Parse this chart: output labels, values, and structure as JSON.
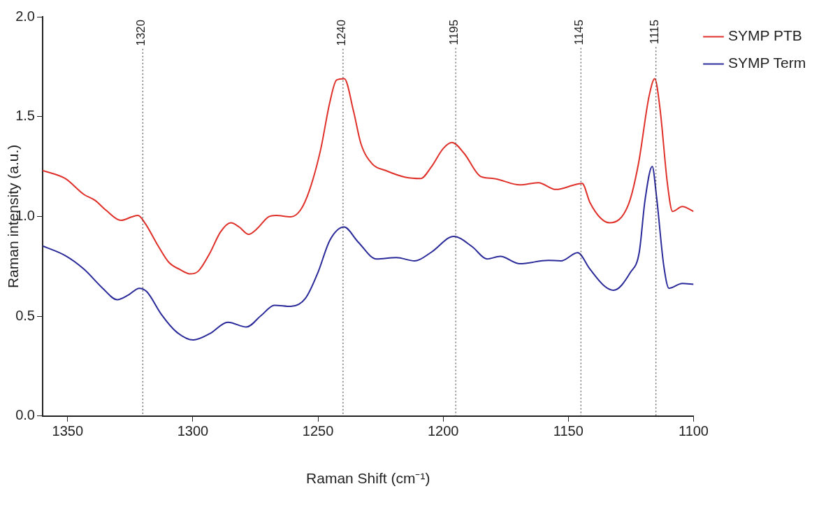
{
  "chart_data": {
    "type": "line",
    "xlabel": "Raman Shift (cm⁻¹)",
    "ylabel": "Raman intensity (a.u.)",
    "xlim": [
      1360,
      1100
    ],
    "xticks": [
      1350,
      1300,
      1250,
      1200,
      1150,
      1100
    ],
    "ylim": [
      0,
      2
    ],
    "yticks": [
      {
        "value": 0,
        "label": "0.0"
      },
      {
        "value": 0.5,
        "label": "0.5"
      },
      {
        "value": 1,
        "label": "1.0"
      },
      {
        "value": 1.5,
        "label": "1.5"
      },
      {
        "value": 2,
        "label": "2.0"
      }
    ],
    "grid": false,
    "legend": "top right",
    "marker": "none",
    "line_style": "solid",
    "ref_lines": [
      {
        "axis": "x",
        "value": 1320,
        "label": "1320",
        "color": "#333333",
        "line_style": "dotted"
      },
      {
        "axis": "x",
        "value": 1240,
        "label": "1240",
        "color": "#333333",
        "line_style": "dotted"
      },
      {
        "axis": "x",
        "value": 1195,
        "label": "1195",
        "color": "#333333",
        "line_style": "dotted"
      },
      {
        "axis": "x",
        "value": 1145,
        "label": "1145",
        "color": "#333333",
        "line_style": "dotted"
      },
      {
        "axis": "x",
        "value": 1115,
        "label": "1115",
        "color": "#333333",
        "line_style": "dotted"
      }
    ],
    "series": [
      {
        "name": "SYMP PTB",
        "color": "#e0302a",
        "x": [
          1360,
          1351,
          1343.5,
          1339,
          1334.6,
          1328.7,
          1324.3,
          1321.9,
          1319,
          1314,
          1309.6,
          1305,
          1301,
          1297.8,
          1293.3,
          1288.9,
          1284.8,
          1281.5,
          1277.7,
          1274.7,
          1269.7,
          1266.8,
          1260.9,
          1257,
          1253.5,
          1249,
          1245.3,
          1242.6,
          1239.5,
          1235.8,
          1232.9,
          1228.4,
          1223,
          1215,
          1209,
          1204.8,
          1200,
          1196.5,
          1191.6,
          1185,
          1179.8,
          1169.4,
          1162,
          1155,
          1147,
          1144.5,
          1141.4,
          1137,
          1133.5,
          1126,
          1122,
          1117.8,
          1115.5,
          1113.4,
          1110.4,
          1108.4,
          1104.5,
          1100
        ],
        "values": [
          1.23,
          1.19,
          1.11,
          1.08,
          1.03,
          0.98,
          0.998,
          1.005,
          0.964,
          0.855,
          0.77,
          0.733,
          0.712,
          0.726,
          0.814,
          0.923,
          0.968,
          0.947,
          0.91,
          0.934,
          0.998,
          1.005,
          0.998,
          1.032,
          1.128,
          1.332,
          1.571,
          1.683,
          1.69,
          1.526,
          1.366,
          1.264,
          1.23,
          1.196,
          1.19,
          1.247,
          1.34,
          1.37,
          1.315,
          1.2,
          1.19,
          1.158,
          1.169,
          1.135,
          1.16,
          1.165,
          1.07,
          0.99,
          0.968,
          1.06,
          1.264,
          1.6,
          1.69,
          1.54,
          1.16,
          1.025,
          1.05,
          1.025
        ]
      },
      {
        "name": "SYMP Term",
        "color": "#2a2a9a",
        "x": [
          1360,
          1351,
          1343.5,
          1336,
          1330.2,
          1325.8,
          1321.4,
          1318.4,
          1312.5,
          1306.6,
          1299.8,
          1293.3,
          1286,
          1278.6,
          1272.7,
          1267.4,
          1260.9,
          1255,
          1250,
          1245.3,
          1239.6,
          1234,
          1226.7,
          1218.7,
          1211.4,
          1204.7,
          1195.8,
          1188.4,
          1182.5,
          1177.2,
          1169.4,
          1158,
          1153,
          1146.3,
          1141.4,
          1135.5,
          1132,
          1125.2,
          1121.7,
          1119.4,
          1116.5,
          1114.8,
          1111.9,
          1109.8,
          1104.5,
          1100
        ],
        "values": [
          0.852,
          0.804,
          0.736,
          0.64,
          0.583,
          0.606,
          0.64,
          0.623,
          0.508,
          0.422,
          0.381,
          0.412,
          0.47,
          0.446,
          0.504,
          0.555,
          0.549,
          0.59,
          0.72,
          0.88,
          0.947,
          0.872,
          0.787,
          0.794,
          0.777,
          0.821,
          0.9,
          0.848,
          0.787,
          0.8,
          0.763,
          0.78,
          0.777,
          0.818,
          0.736,
          0.65,
          0.63,
          0.72,
          0.82,
          1.08,
          1.25,
          1.1,
          0.753,
          0.64,
          0.664,
          0.66
        ]
      }
    ]
  }
}
